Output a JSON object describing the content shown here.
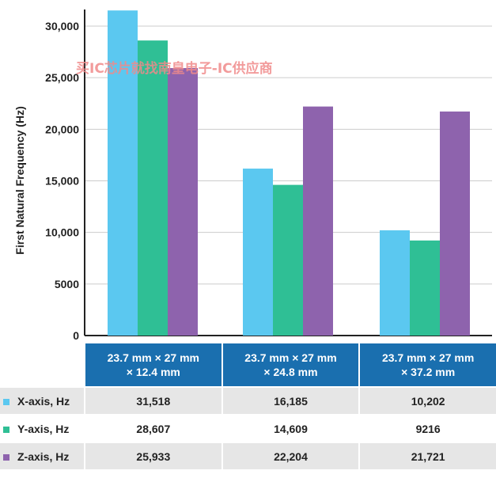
{
  "chart_data": {
    "type": "bar",
    "ylabel": "First Natural Frequency (Hz)",
    "ylim": [
      0,
      30000
    ],
    "yticks": [
      "0",
      "5000",
      "10,000",
      "15,000",
      "20,000",
      "25,000",
      "30,000"
    ],
    "ytick_values": [
      0,
      5000,
      10000,
      15000,
      20000,
      25000,
      30000
    ],
    "grid": true,
    "categories": [
      [
        "23.7 mm × 27 mm",
        "× 12.4 mm"
      ],
      [
        "23.7 mm × 27 mm",
        "× 24.8 mm"
      ],
      [
        "23.7 mm × 27 mm",
        "× 37.2 mm"
      ]
    ],
    "series": [
      {
        "name": "X-axis, Hz",
        "color": "#5bc8f0",
        "values": [
          31518,
          16185,
          10202
        ],
        "labels": [
          "31,518",
          "16,185",
          "10,202"
        ]
      },
      {
        "name": "Y-axis, Hz",
        "color": "#2fbf95",
        "values": [
          28607,
          14609,
          9216
        ],
        "labels": [
          "28,607",
          "14,609",
          "9216"
        ]
      },
      {
        "name": "Z-axis, Hz",
        "color": "#8e63ad",
        "values": [
          25933,
          22204,
          21721
        ],
        "labels": [
          "25,933",
          "22,204",
          "21,721"
        ]
      }
    ]
  },
  "watermark": "买IC芯片就找南皇电子-IC供应商",
  "colors": {
    "header": "#1a6faf",
    "grid": "#cccccc",
    "axis": "#222222"
  }
}
